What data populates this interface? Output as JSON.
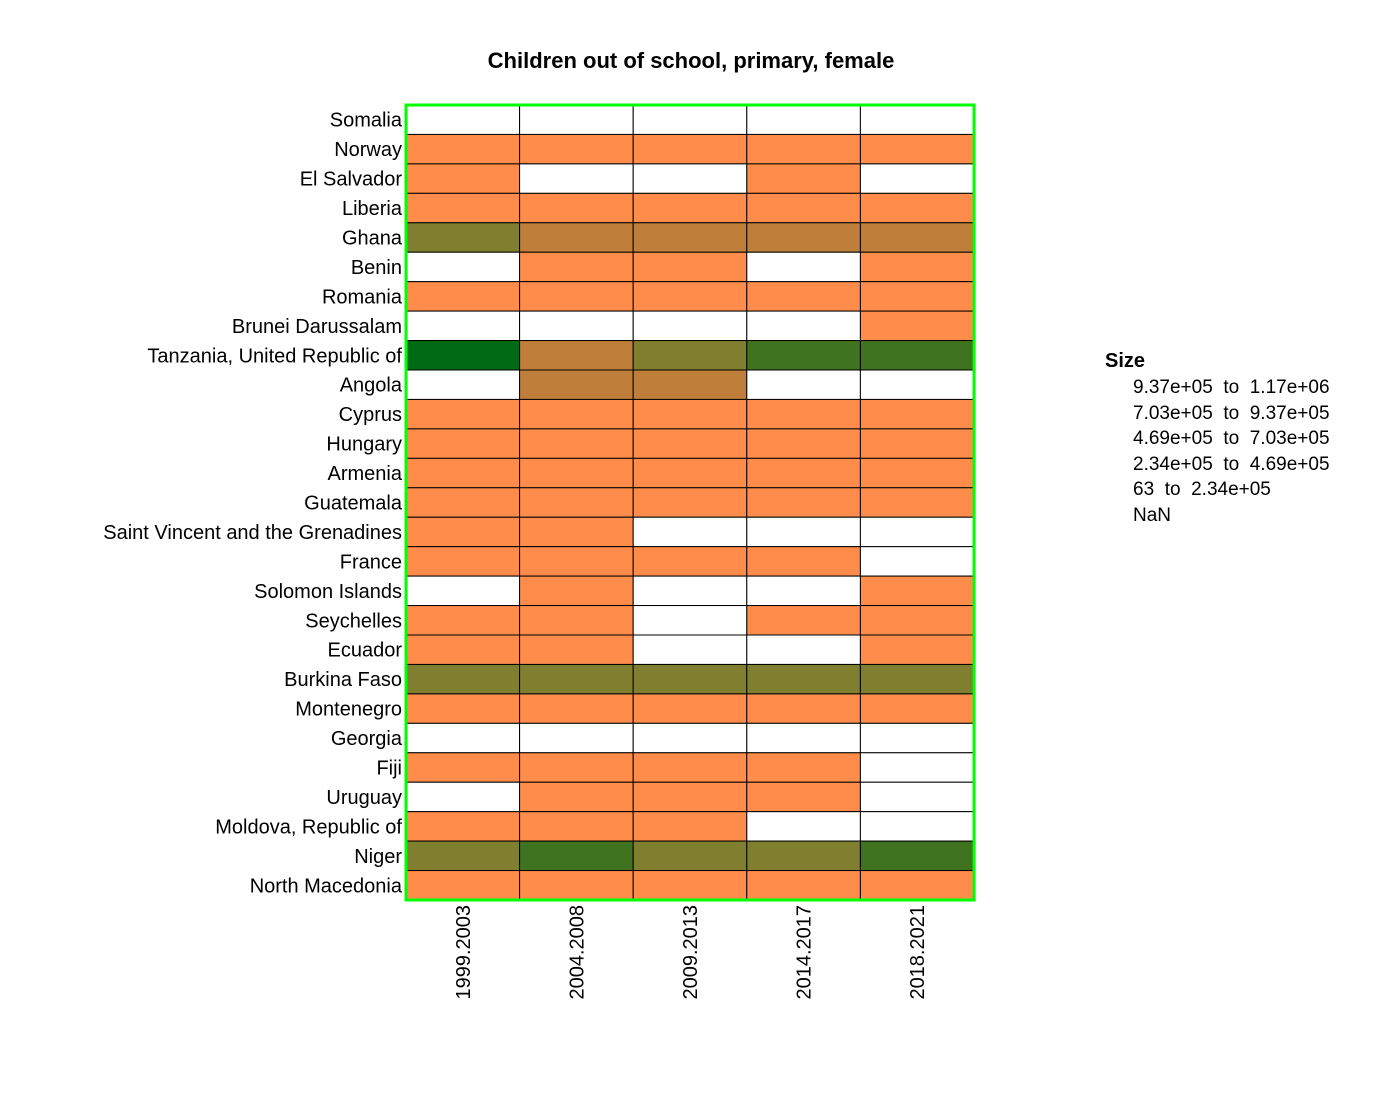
{
  "chart_data": {
    "type": "heatmap",
    "title": "Children out of school, primary, female",
    "columns": [
      "1999.2003",
      "2004.2008",
      "2009.2013",
      "2014.2017",
      "2018.2021"
    ],
    "rows": [
      "Somalia",
      "Norway",
      "El Salvador",
      "Liberia",
      "Ghana",
      "Benin",
      "Romania",
      "Brunei Darussalam",
      "Tanzania, United Republic of",
      "Angola",
      "Cyprus",
      "Hungary",
      "Armenia",
      "Guatemala",
      "Saint Vincent and the Grenadines",
      "France",
      "Solomon Islands",
      "Seychelles",
      "Ecuador",
      "Burkina Faso",
      "Montenegro",
      "Georgia",
      "Fiji",
      "Uruguay",
      "Moldova, Republic of",
      "Niger",
      "North Macedonia"
    ],
    "values": [
      [
        5,
        5,
        5,
        5,
        5
      ],
      [
        0,
        0,
        0,
        0,
        0
      ],
      [
        0,
        5,
        5,
        0,
        5
      ],
      [
        0,
        0,
        0,
        0,
        0
      ],
      [
        2,
        1,
        1,
        1,
        1
      ],
      [
        5,
        0,
        0,
        5,
        0
      ],
      [
        0,
        0,
        0,
        0,
        0
      ],
      [
        5,
        5,
        5,
        5,
        0
      ],
      [
        4,
        1,
        2,
        3,
        3
      ],
      [
        5,
        1,
        1,
        5,
        5
      ],
      [
        0,
        0,
        0,
        0,
        0
      ],
      [
        0,
        0,
        0,
        0,
        0
      ],
      [
        0,
        0,
        0,
        0,
        0
      ],
      [
        0,
        0,
        0,
        0,
        0
      ],
      [
        0,
        0,
        5,
        5,
        5
      ],
      [
        0,
        0,
        0,
        0,
        5
      ],
      [
        5,
        0,
        5,
        5,
        0
      ],
      [
        0,
        0,
        5,
        0,
        0
      ],
      [
        0,
        0,
        5,
        5,
        0
      ],
      [
        2,
        2,
        2,
        2,
        2
      ],
      [
        0,
        0,
        0,
        0,
        0
      ],
      [
        5,
        5,
        5,
        5,
        5
      ],
      [
        0,
        0,
        0,
        0,
        5
      ],
      [
        5,
        0,
        0,
        0,
        5
      ],
      [
        0,
        0,
        0,
        5,
        5
      ],
      [
        2,
        3,
        2,
        2,
        3
      ],
      [
        0,
        0,
        0,
        0,
        0
      ]
    ],
    "value_encoding": "index into legend.bins (0 = lowest bin, 5 = NaN)",
    "legend": {
      "title": "Size",
      "bins": [
        "63  to  2.34e+05",
        "2.34e+05  to  4.69e+05",
        "4.69e+05  to  7.03e+05",
        "7.03e+05  to  9.37e+05",
        "9.37e+05  to  1.17e+06",
        "NaN"
      ],
      "colors": [
        "#ff8c4a",
        "#bf7f3a",
        "#7f7f2f",
        "#3f7320",
        "#006b14",
        "#ffffff"
      ],
      "display_order": [
        4,
        3,
        2,
        1,
        0,
        5
      ]
    },
    "frame_color": "#00ff00"
  }
}
